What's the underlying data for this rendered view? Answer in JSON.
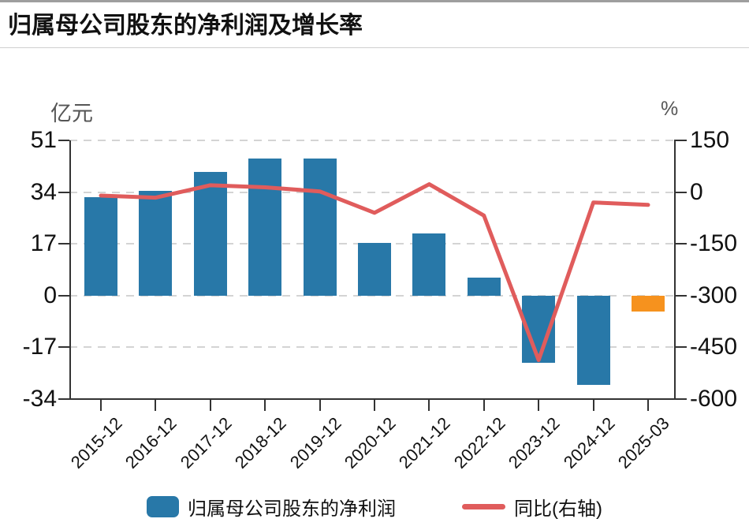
{
  "title": "归属母公司股东的净利润及增长率",
  "left_axis": {
    "unit": "亿元",
    "ticks": [
      51,
      34,
      17,
      0,
      -17,
      -34
    ],
    "range": [
      -34,
      51
    ]
  },
  "right_axis": {
    "unit": "%",
    "ticks": [
      150,
      0,
      -150,
      -300,
      -450,
      -600
    ],
    "range": [
      -600,
      150
    ]
  },
  "legend": {
    "bar_label": "归属母公司股东的净利润",
    "line_label": "同比(右轴)"
  },
  "colors": {
    "bar": "#2878a8",
    "bar_highlight": "#f6921e",
    "line": "#e05c5c",
    "grid": "#d4d4d4",
    "axis": "#333333",
    "text": "#111111",
    "unit_text": "#555555"
  },
  "chart_data": {
    "type": "bar+line combo",
    "categories": [
      "2015-12",
      "2016-12",
      "2017-12",
      "2018-12",
      "2019-12",
      "2020-12",
      "2021-12",
      "2022-12",
      "2023-12",
      "2024-12",
      "2025-03"
    ],
    "series": [
      {
        "name": "归属母公司股东的净利润",
        "type": "bar",
        "axis": "left",
        "unit": "亿元",
        "values": [
          32.4,
          34.3,
          40.7,
          45.0,
          45.0,
          17.3,
          20.5,
          5.8,
          -22.0,
          -29.3,
          -5.2
        ],
        "colors": [
          "#2878a8",
          "#2878a8",
          "#2878a8",
          "#2878a8",
          "#2878a8",
          "#2878a8",
          "#2878a8",
          "#2878a8",
          "#2878a8",
          "#2878a8",
          "#f6921e"
        ]
      },
      {
        "name": "同比(右轴)",
        "type": "line",
        "axis": "right",
        "unit": "%",
        "values": [
          -10,
          -16,
          20,
          14,
          2,
          -60,
          23,
          -68,
          -487,
          -30,
          -37
        ]
      }
    ],
    "title": "归属母公司股东的净利润及增长率",
    "left_ylim": [
      -34,
      51
    ],
    "right_ylim": [
      -600,
      150
    ],
    "grid": "horizontal dashed",
    "legend_position": "bottom",
    "x_label_rotation": -45
  }
}
